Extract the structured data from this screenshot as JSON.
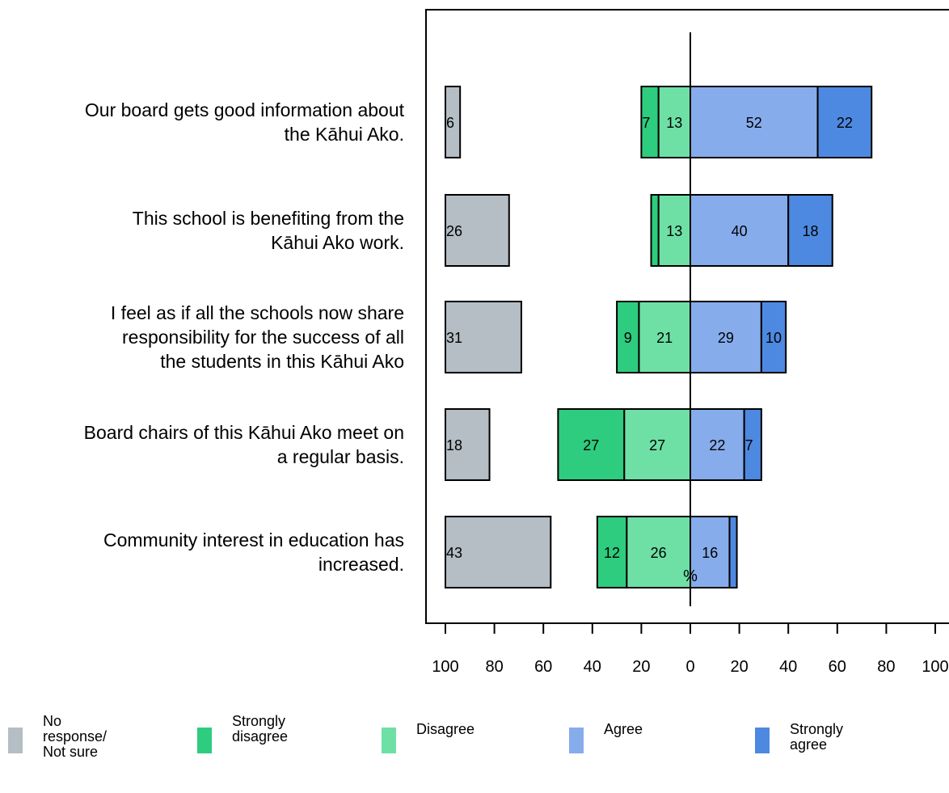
{
  "chart_data": {
    "type": "bar",
    "xlabel": "%",
    "xlim": [
      -100,
      100
    ],
    "xticks": [
      "100",
      "80",
      "60",
      "40",
      "20",
      "0",
      "20",
      "40",
      "60",
      "80",
      "100"
    ],
    "categories": [
      "Our board gets good information about\nthe Kāhui Ako.",
      "This school is benefiting from the\nKāhui Ako work.",
      "I feel as if all the schools now share\nresponsibility for the success of all\nthe students in this Kāhui Ako",
      "Board chairs of this Kāhui Ako meet on\na regular basis.",
      "Community interest in education has\nincreased."
    ],
    "series": [
      {
        "name": "No response/\nNot sure",
        "color": "#b4bec4",
        "values": [
          6,
          26,
          31,
          18,
          43
        ]
      },
      {
        "name": "Strongly\ndisagree",
        "color": "#2ecc7e",
        "values": [
          7,
          3,
          9,
          27,
          12
        ]
      },
      {
        "name": "Disagree",
        "color": "#6ee0a6",
        "values": [
          13,
          13,
          21,
          27,
          26
        ]
      },
      {
        "name": "Agree",
        "color": "#86acec",
        "values": [
          52,
          40,
          29,
          22,
          16
        ]
      },
      {
        "name": "Strongly agree",
        "color": "#4d89e0",
        "values": [
          22,
          18,
          10,
          7,
          3
        ]
      }
    ],
    "data_labels": [
      [
        "6",
        "7",
        "13",
        "52",
        "22"
      ],
      [
        "26",
        "",
        "13",
        "40",
        "18"
      ],
      [
        "31",
        "9",
        "21",
        "29",
        "10"
      ],
      [
        "18",
        "27",
        "27",
        "22",
        "7"
      ],
      [
        "43",
        "12",
        "26",
        "16",
        ""
      ]
    ],
    "legend_position": "bottom"
  }
}
